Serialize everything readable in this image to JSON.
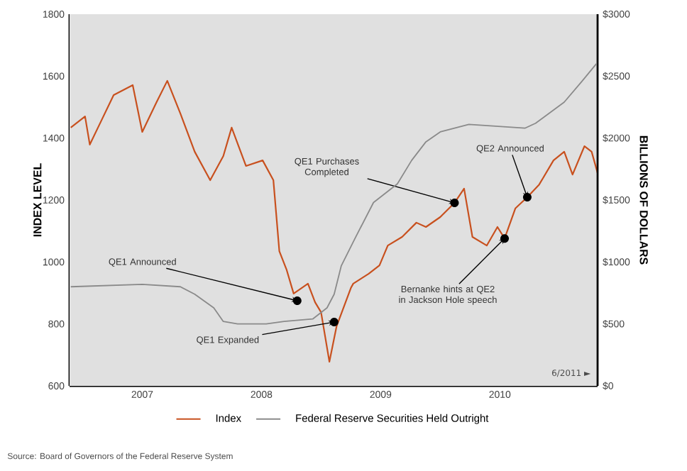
{
  "chart_data": {
    "type": "line",
    "ylabel": "INDEX LEVEL",
    "y2label": "BILLIONS OF DOLLARS",
    "xlim": [
      2006.89,
      2011.32
    ],
    "xticks": [
      {
        "value": 2007.5,
        "label": "2007"
      },
      {
        "value": 2008.5,
        "label": "2008"
      },
      {
        "value": 2009.5,
        "label": "2009"
      },
      {
        "value": 2010.5,
        "label": "2010"
      }
    ],
    "ylim": [
      600,
      1800
    ],
    "yticks": [
      600,
      800,
      1000,
      1200,
      1400,
      1600,
      1800
    ],
    "y2lim": [
      0,
      3000
    ],
    "y2ticks": [
      {
        "value": 0,
        "label": "$0"
      },
      {
        "value": 500,
        "label": "$500"
      },
      {
        "value": 1000,
        "label": "$1000"
      },
      {
        "value": 1500,
        "label": "$1500"
      },
      {
        "value": 2000,
        "label": "$2000"
      },
      {
        "value": 2500,
        "label": "$2500"
      },
      {
        "value": 3000,
        "label": "$3000"
      }
    ],
    "legend": "bottom",
    "series": [
      {
        "name": "Index",
        "color": "#c8501e",
        "x": [
          2006.9,
          2007.02,
          2007.06,
          2007.14,
          2007.26,
          2007.42,
          2007.5,
          2007.62,
          2007.71,
          2007.82,
          2007.94,
          2008.07,
          2008.18,
          2008.25,
          2008.37,
          2008.51,
          2008.6,
          2008.65,
          2008.71,
          2008.77,
          2008.89,
          2008.95,
          2009.0,
          2009.07,
          2009.13,
          2009.25,
          2009.27,
          2009.4,
          2009.49,
          2009.56,
          2009.68,
          2009.8,
          2009.88,
          2010.0,
          2010.12,
          2010.2,
          2010.27,
          2010.39,
          2010.48,
          2010.54,
          2010.63,
          2010.73,
          2010.83,
          2010.95,
          2011.04,
          2011.11,
          2011.21,
          2011.27,
          2011.32
        ],
        "values": [
          1434,
          1470,
          1379,
          1443,
          1539,
          1571,
          1420,
          1516,
          1585,
          1479,
          1356,
          1264,
          1342,
          1434,
          1310,
          1328,
          1264,
          1035,
          976,
          898,
          930,
          870,
          838,
          678,
          792,
          916,
          930,
          962,
          989,
          1053,
          1081,
          1127,
          1113,
          1145,
          1191,
          1237,
          1081,
          1053,
          1113,
          1076,
          1173,
          1209,
          1250,
          1328,
          1356,
          1282,
          1374,
          1356,
          1287
        ]
      },
      {
        "name": "Federal Reserve Securities Held Outright",
        "color": "#8a8a8a",
        "axis": "y2",
        "x": [
          2006.9,
          2007.5,
          2007.82,
          2007.94,
          2008.1,
          2008.18,
          2008.3,
          2008.54,
          2008.69,
          2008.93,
          2009.05,
          2009.11,
          2009.17,
          2009.29,
          2009.44,
          2009.64,
          2009.76,
          2009.88,
          2010.0,
          2010.24,
          2010.71,
          2010.8,
          2011.04,
          2011.19,
          2011.31
        ],
        "values": [
          800,
          820,
          800,
          740,
          630,
          520,
          500,
          500,
          520,
          540,
          630,
          740,
          970,
          1200,
          1480,
          1630,
          1820,
          1970,
          2050,
          2110,
          2080,
          2120,
          2290,
          2460,
          2600
        ]
      }
    ],
    "annotations": [
      {
        "text": "QE1 Announced",
        "x": 2008.8,
        "y": 875
      },
      {
        "text": "QE1 Expanded",
        "x": 2009.11,
        "y": 806
      },
      {
        "text": "QE1 Purchases Completed",
        "x": 2010.12,
        "y": 1191
      },
      {
        "text": "Bernanke hints at QE2 in Jackson Hole speech",
        "x": 2010.54,
        "y": 1076
      },
      {
        "text": "QE2 Announced",
        "x": 2010.73,
        "y": 1209
      },
      "6/2011 ►",
      "Source: Board of Governors of the Federal Reserve System"
    ]
  }
}
